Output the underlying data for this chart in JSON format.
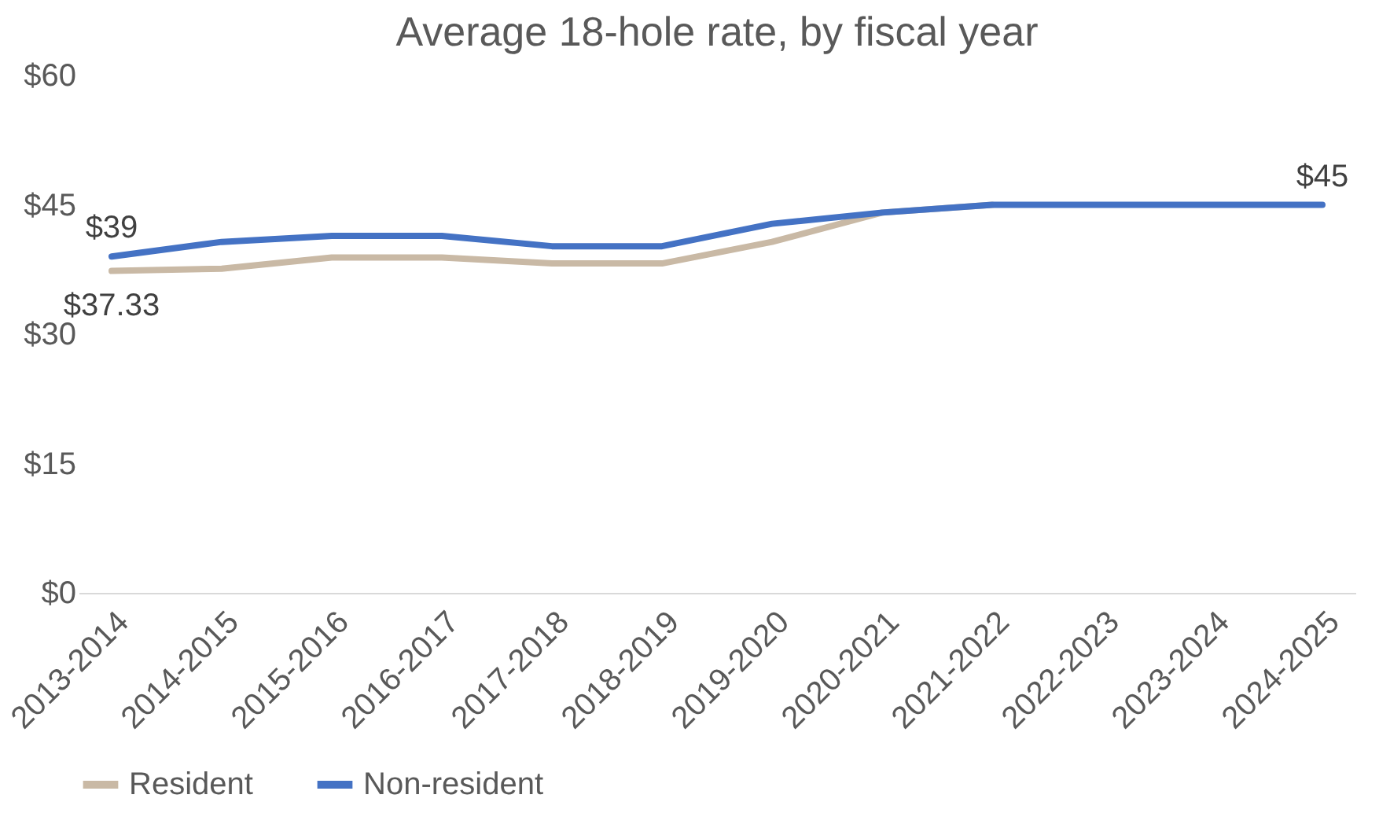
{
  "chart_data": {
    "type": "line",
    "title": "Average 18-hole rate, by fiscal year",
    "categories": [
      "2013-2014",
      "2014-2015",
      "2015-2016",
      "2016-2017",
      "2017-2018",
      "2018-2019",
      "2019-2020",
      "2020-2021",
      "2021-2022",
      "2022-2023",
      "2023-2024",
      "2024-2025"
    ],
    "series": [
      {
        "name": "Resident",
        "color": "#c9b9a5",
        "values": [
          37.33,
          37.6,
          38.9,
          38.9,
          38.2,
          38.2,
          40.7,
          44.1,
          45,
          null,
          null,
          null
        ],
        "value_labels": [
          "$37.33",
          null,
          null,
          null,
          null,
          null,
          null,
          null,
          null,
          null,
          null,
          null
        ]
      },
      {
        "name": "Non-resident",
        "color": "#4472c4",
        "values": [
          39,
          40.7,
          41.4,
          41.4,
          40.2,
          40.2,
          42.8,
          44.1,
          45,
          45,
          45,
          45
        ],
        "value_labels": [
          "$39",
          null,
          null,
          null,
          null,
          null,
          null,
          null,
          null,
          null,
          null,
          "$45"
        ]
      }
    ],
    "ylim": [
      0,
      60
    ],
    "yticks": [
      {
        "value": 0,
        "label": "$0"
      },
      {
        "value": 15,
        "label": "$15"
      },
      {
        "value": 30,
        "label": "$30"
      },
      {
        "value": 45,
        "label": "$45"
      },
      {
        "value": 60,
        "label": "$60"
      }
    ],
    "grid": false,
    "legend": "bottom",
    "marker": "none",
    "line_style": "solid"
  }
}
